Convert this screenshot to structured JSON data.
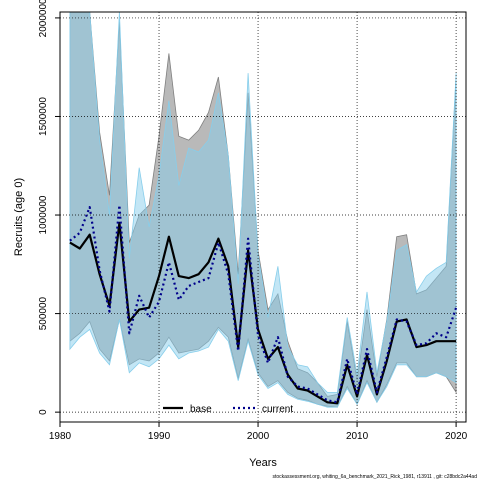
{
  "chart_data": {
    "type": "line",
    "xlabel": "Years",
    "ylabel": "Recruits (age 0)",
    "xlim": [
      1980,
      2021
    ],
    "ylim": [
      -50000,
      2030000
    ],
    "x_ticks": [
      1980,
      1990,
      2000,
      2010,
      2020
    ],
    "y_ticks": [
      0,
      500000,
      1000000,
      1500000,
      2000000
    ],
    "grid": true,
    "legend_position": "bottom-center",
    "footnote": "stockassessment.org,  whiting_6a_benchmark_2021_Rick_1981, r13911 , git: c28bdc2a44ad",
    "years": [
      1981,
      1982,
      1983,
      1984,
      1985,
      1986,
      1987,
      1988,
      1989,
      1990,
      1991,
      1992,
      1993,
      1994,
      1995,
      1996,
      1997,
      1998,
      1999,
      2000,
      2001,
      2002,
      2003,
      2004,
      2005,
      2006,
      2007,
      2008,
      2009,
      2010,
      2011,
      2012,
      2013,
      2014,
      2015,
      2016,
      2017,
      2018,
      2019,
      2020
    ],
    "series": [
      {
        "name": "base",
        "color": "#000000",
        "band_color": "#808080",
        "dash": "solid",
        "values": [
          860000,
          830000,
          900000,
          700000,
          540000,
          960000,
          460000,
          520000,
          530000,
          690000,
          890000,
          690000,
          680000,
          700000,
          760000,
          880000,
          740000,
          330000,
          820000,
          420000,
          270000,
          330000,
          190000,
          120000,
          110000,
          80000,
          50000,
          45000,
          240000,
          80000,
          290000,
          90000,
          260000,
          460000,
          470000,
          330000,
          340000,
          360000,
          360000,
          360000
        ],
        "lower": [
          360000,
          400000,
          460000,
          320000,
          260000,
          470000,
          240000,
          270000,
          260000,
          300000,
          380000,
          300000,
          310000,
          320000,
          360000,
          430000,
          380000,
          170000,
          370000,
          200000,
          130000,
          160000,
          100000,
          70000,
          60000,
          40000,
          30000,
          25000,
          130000,
          40000,
          160000,
          50000,
          140000,
          250000,
          250000,
          180000,
          180000,
          200000,
          180000,
          100000
        ],
        "upper": [
          2100000,
          2100000,
          2100000,
          1420000,
          1100000,
          1980000,
          860000,
          1000000,
          1050000,
          1400000,
          1820000,
          1400000,
          1380000,
          1430000,
          1520000,
          1700000,
          1300000,
          700000,
          1620000,
          820000,
          520000,
          600000,
          360000,
          220000,
          200000,
          150000,
          80000,
          90000,
          460000,
          160000,
          520000,
          180000,
          470000,
          890000,
          900000,
          600000,
          620000,
          680000,
          740000,
          1700000
        ]
      },
      {
        "name": "current",
        "color": "#00008b",
        "band_color": "#87ceeb",
        "dash": "dotted",
        "values": [
          870000,
          910000,
          1040000,
          720000,
          510000,
          1050000,
          400000,
          590000,
          480000,
          560000,
          760000,
          570000,
          640000,
          660000,
          680000,
          860000,
          700000,
          310000,
          880000,
          390000,
          250000,
          380000,
          180000,
          130000,
          120000,
          90000,
          60000,
          50000,
          270000,
          90000,
          320000,
          100000,
          280000,
          470000,
          460000,
          340000,
          350000,
          400000,
          380000,
          530000
        ],
        "lower": [
          320000,
          380000,
          420000,
          300000,
          240000,
          470000,
          200000,
          250000,
          230000,
          270000,
          340000,
          270000,
          300000,
          310000,
          330000,
          420000,
          360000,
          160000,
          360000,
          190000,
          120000,
          150000,
          90000,
          65000,
          55000,
          40000,
          25000,
          25000,
          120000,
          40000,
          150000,
          50000,
          130000,
          240000,
          240000,
          180000,
          180000,
          200000,
          180000,
          150000
        ],
        "upper": [
          2100000,
          2100000,
          2100000,
          1380000,
          1000000,
          2100000,
          780000,
          1240000,
          940000,
          1200000,
          1580000,
          1150000,
          1340000,
          1320000,
          1380000,
          1620000,
          1300000,
          650000,
          1720000,
          800000,
          480000,
          740000,
          330000,
          240000,
          230000,
          150000,
          100000,
          100000,
          480000,
          190000,
          610000,
          200000,
          460000,
          820000,
          850000,
          610000,
          690000,
          730000,
          760000,
          1720000
        ]
      }
    ]
  }
}
